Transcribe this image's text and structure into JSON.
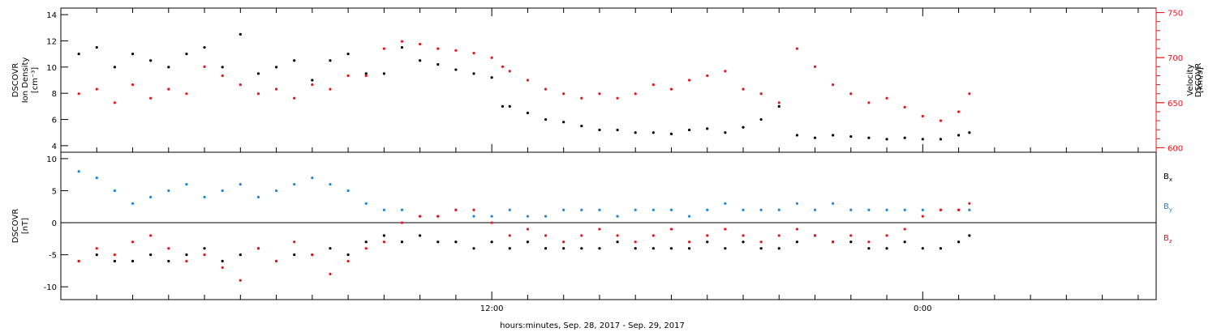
{
  "xlabel": "hours:minutes, Sep. 28, 2017 - Sep. 29, 2017",
  "x_ticks": [
    {
      "hour": 12,
      "label": "12:00"
    },
    {
      "hour": 24,
      "label": "0:00"
    }
  ],
  "colors": {
    "black": "#000000",
    "red": "#e8141c",
    "blue": "#1a86d6"
  },
  "chart_data": [
    {
      "type": "scatter",
      "panel": "top",
      "x_range_hours": [
        0,
        30.5
      ],
      "ylabel_left": [
        "DSCOVR",
        "Ion Density",
        "[cm⁻³]"
      ],
      "ylabel_right": [
        "DSCOVR",
        "Velocity",
        "[km/s]"
      ],
      "y_left_range": [
        3.5,
        14.5
      ],
      "y_left_ticks": [
        4,
        6,
        8,
        10,
        12,
        14
      ],
      "y_right_range": [
        595,
        755
      ],
      "y_right_ticks": [
        600,
        650,
        700,
        750
      ],
      "series": [
        {
          "name": "Ion Density",
          "axis": "left",
          "color": "#000000",
          "x": [
            0.5,
            1.0,
            1.5,
            2.0,
            2.5,
            3.0,
            3.5,
            4.0,
            4.5,
            5.0,
            5.5,
            6.0,
            6.5,
            7.0,
            7.5,
            8.0,
            8.5,
            9.0,
            9.5,
            10.0,
            10.5,
            11.0,
            11.5,
            12.0,
            12.3,
            12.5,
            13.0,
            13.5,
            14.0,
            14.5,
            15.0,
            15.5,
            16.0,
            16.5,
            17.0,
            17.5,
            18.0,
            18.5,
            19.0,
            19.5,
            20.0,
            20.5,
            21.0,
            21.5,
            22.0,
            22.5,
            23.0,
            23.5,
            24.0,
            24.5,
            25.0,
            25.3
          ],
          "y": [
            11.0,
            11.5,
            10.0,
            11.0,
            10.5,
            10.0,
            11.0,
            11.5,
            10.0,
            12.5,
            9.5,
            10.0,
            10.5,
            9.0,
            10.5,
            11.0,
            9.5,
            9.5,
            11.5,
            10.5,
            10.2,
            9.8,
            9.5,
            9.2,
            7.0,
            7.0,
            6.5,
            6.0,
            5.8,
            5.5,
            5.2,
            5.2,
            5.0,
            5.0,
            4.9,
            5.2,
            5.3,
            5.0,
            5.4,
            6.0,
            7.0,
            4.8,
            4.6,
            4.8,
            4.7,
            4.6,
            4.5,
            4.6,
            4.5,
            4.5,
            4.8,
            5.0
          ]
        },
        {
          "name": "Velocity",
          "axis": "right",
          "color": "#e8141c",
          "x": [
            0.5,
            1.0,
            1.5,
            2.0,
            2.5,
            3.0,
            3.5,
            4.0,
            4.5,
            5.0,
            5.5,
            6.0,
            6.5,
            7.0,
            7.5,
            8.0,
            8.5,
            9.0,
            9.5,
            10.0,
            10.5,
            11.0,
            11.5,
            12.0,
            12.3,
            12.5,
            13.0,
            13.5,
            14.0,
            14.5,
            15.0,
            15.5,
            16.0,
            16.5,
            17.0,
            17.5,
            18.0,
            18.5,
            19.0,
            19.5,
            20.0,
            20.5,
            21.0,
            21.5,
            22.0,
            22.5,
            23.0,
            23.5,
            24.0,
            24.5,
            25.0,
            25.3
          ],
          "y": [
            660,
            665,
            650,
            670,
            655,
            665,
            660,
            690,
            680,
            670,
            660,
            665,
            655,
            670,
            665,
            680,
            680,
            710,
            718,
            715,
            710,
            708,
            705,
            700,
            690,
            685,
            675,
            665,
            660,
            655,
            660,
            655,
            660,
            670,
            665,
            675,
            680,
            685,
            665,
            660,
            650,
            710,
            690,
            670,
            660,
            650,
            655,
            645,
            635,
            630,
            640,
            660
          ]
        }
      ]
    },
    {
      "type": "scatter",
      "panel": "bottom",
      "x_range_hours": [
        0,
        30.5
      ],
      "ylabel_left": [
        "DSCOVR",
        "[nT]"
      ],
      "y_left_range": [
        -12,
        11
      ],
      "y_left_ticks": [
        -10,
        -5,
        0,
        5,
        10
      ],
      "series": [
        {
          "name": "Bx",
          "color": "#000000",
          "x": [
            0.5,
            1.0,
            1.5,
            2.0,
            2.5,
            3.0,
            3.5,
            4.0,
            4.5,
            5.0,
            5.5,
            6.0,
            6.5,
            7.0,
            7.5,
            8.0,
            8.5,
            9.0,
            9.5,
            10.0,
            10.5,
            11.0,
            11.5,
            12.0,
            12.5,
            13.0,
            13.5,
            14.0,
            14.5,
            15.0,
            15.5,
            16.0,
            16.5,
            17.0,
            17.5,
            18.0,
            18.5,
            19.0,
            19.5,
            20.0,
            20.5,
            21.0,
            21.5,
            22.0,
            22.5,
            23.0,
            23.5,
            24.0,
            24.5,
            25.0,
            25.3
          ],
          "y": [
            -6,
            -5,
            -6,
            -6,
            -5,
            -6,
            -5,
            -4,
            -6,
            -5,
            -4,
            -6,
            -5,
            -5,
            -4,
            -5,
            -3,
            -2,
            -3,
            -2,
            -3,
            -3,
            -4,
            -3,
            -4,
            -3,
            -4,
            -4,
            -4,
            -4,
            -3,
            -4,
            -4,
            -4,
            -4,
            -3,
            -4,
            -3,
            -4,
            -4,
            -3,
            -2,
            -3,
            -3,
            -4,
            -4,
            -3,
            -4,
            -4,
            -3,
            -2
          ]
        },
        {
          "name": "By",
          "color": "#1a86d6",
          "x": [
            0.5,
            1.0,
            1.5,
            2.0,
            2.5,
            3.0,
            3.5,
            4.0,
            4.5,
            5.0,
            5.5,
            6.0,
            6.5,
            7.0,
            7.5,
            8.0,
            8.5,
            9.0,
            9.5,
            10.0,
            10.5,
            11.0,
            11.5,
            12.0,
            12.5,
            13.0,
            13.5,
            14.0,
            14.5,
            15.0,
            15.5,
            16.0,
            16.5,
            17.0,
            17.5,
            18.0,
            18.5,
            19.0,
            19.5,
            20.0,
            20.5,
            21.0,
            21.5,
            22.0,
            22.5,
            23.0,
            23.5,
            24.0,
            24.5,
            25.0,
            25.3
          ],
          "y": [
            8,
            7,
            5,
            3,
            4,
            5,
            6,
            4,
            5,
            6,
            4,
            5,
            6,
            7,
            6,
            5,
            3,
            2,
            2,
            1,
            1,
            2,
            1,
            1,
            2,
            1,
            1,
            2,
            2,
            2,
            1,
            2,
            2,
            2,
            1,
            2,
            3,
            2,
            2,
            2,
            3,
            2,
            3,
            2,
            2,
            2,
            2,
            2,
            2,
            2,
            2
          ]
        },
        {
          "name": "Bz",
          "color": "#e8141c",
          "x": [
            0.5,
            1.0,
            1.5,
            2.0,
            2.5,
            3.0,
            3.5,
            4.0,
            4.5,
            5.0,
            5.5,
            6.0,
            6.5,
            7.0,
            7.5,
            8.0,
            8.5,
            9.0,
            9.5,
            10.0,
            10.5,
            11.0,
            11.5,
            12.0,
            12.5,
            13.0,
            13.5,
            14.0,
            14.5,
            15.0,
            15.5,
            16.0,
            16.5,
            17.0,
            17.5,
            18.0,
            18.5,
            19.0,
            19.5,
            20.0,
            20.5,
            21.0,
            21.5,
            22.0,
            22.5,
            23.0,
            23.5,
            24.0,
            24.5,
            25.0,
            25.3
          ],
          "y": [
            -6,
            -4,
            -5,
            -3,
            -2,
            -4,
            -6,
            -5,
            -7,
            -9,
            -4,
            -6,
            -3,
            -5,
            -8,
            -6,
            -4,
            -3,
            0,
            1,
            1,
            2,
            2,
            0,
            -2,
            -1,
            -2,
            -3,
            -2,
            -1,
            -2,
            -3,
            -2,
            -1,
            -3,
            -2,
            -1,
            -2,
            -3,
            -2,
            -1,
            -2,
            -3,
            -2,
            -3,
            -2,
            -1,
            1,
            2,
            2,
            3
          ]
        }
      ],
      "legend": [
        {
          "main": "B",
          "sub": "x",
          "color": "#000000"
        },
        {
          "main": "B",
          "sub": "y",
          "color": "#1a86d6"
        },
        {
          "main": "B",
          "sub": "z",
          "color": "#e8141c"
        }
      ]
    }
  ]
}
